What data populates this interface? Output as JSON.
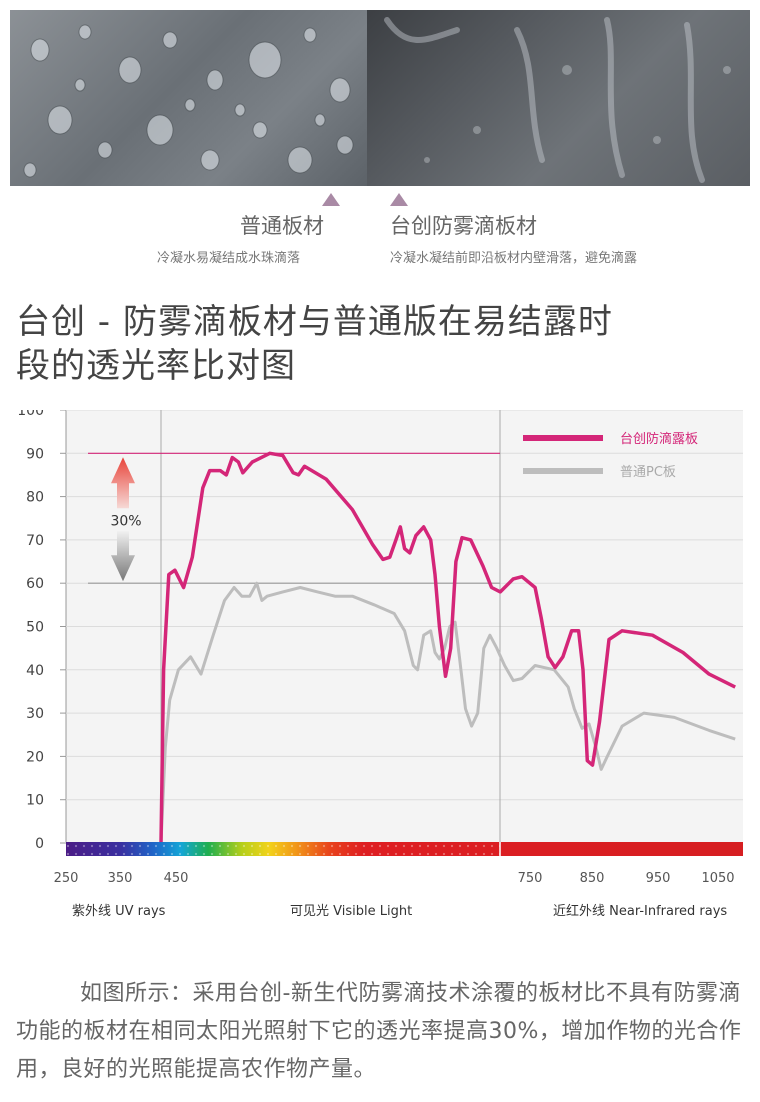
{
  "comparison": {
    "left": {
      "title": "普通板材",
      "subtitle": "冷凝水易凝结成水珠滴落"
    },
    "right": {
      "title": "台创防雾滴板材",
      "subtitle": "冷凝水凝结前即沿板材内壁滑落，避免滴露"
    }
  },
  "heading": {
    "line1": "台创 - 防雾滴板材与普通版在易结露时",
    "line2": "段的透光率比对图"
  },
  "chart_data": {
    "type": "line",
    "x_ticks": [
      {
        "label": "250",
        "x": 250
      },
      {
        "label": "350",
        "x": 350
      },
      {
        "label": "450",
        "x": 450
      },
      {
        "label": "750",
        "x": 750
      },
      {
        "label": "850",
        "x": 850
      },
      {
        "label": "950",
        "x": 950
      },
      {
        "label": "1050",
        "x": 1050
      }
    ],
    "y_ticks": [
      "0",
      "10",
      "20",
      "30",
      "40",
      "50",
      "60",
      "70",
      "80",
      "90",
      "100"
    ],
    "ylim": [
      0,
      100
    ],
    "regions": [
      {
        "label": "紫外线 UV rays",
        "pos": "left"
      },
      {
        "label": "可见光 Visible Light",
        "pos": "center"
      },
      {
        "label": "近红外线 Near-Infrared rays",
        "pos": "right"
      }
    ],
    "annotation": {
      "label": "30%",
      "from": 60,
      "to": 90
    },
    "series": [
      {
        "name": "台创防滴露板",
        "color": "#d42678",
        "points": [
          [
            0,
            0
          ],
          [
            0.3,
            40
          ],
          [
            0.9,
            62
          ],
          [
            1.6,
            63
          ],
          [
            2.6,
            59
          ],
          [
            3.6,
            66
          ],
          [
            4.8,
            82
          ],
          [
            5.6,
            86
          ],
          [
            6.8,
            86
          ],
          [
            7.5,
            85
          ],
          [
            8.2,
            89
          ],
          [
            8.9,
            88
          ],
          [
            9.4,
            85.5
          ],
          [
            10.5,
            88
          ],
          [
            12.5,
            90
          ],
          [
            14,
            89.5
          ],
          [
            15.2,
            85.5
          ],
          [
            15.8,
            85
          ],
          [
            16.5,
            87
          ],
          [
            19,
            84
          ],
          [
            22,
            77
          ],
          [
            24.3,
            69
          ],
          [
            25.5,
            65.5
          ],
          [
            26.3,
            66
          ],
          [
            27,
            70
          ],
          [
            27.5,
            73
          ],
          [
            28,
            68
          ],
          [
            28.6,
            67
          ],
          [
            29.3,
            71
          ],
          [
            30.2,
            73
          ],
          [
            31,
            70
          ],
          [
            31.5,
            62
          ],
          [
            32,
            50
          ],
          [
            32.7,
            38.5
          ],
          [
            33.3,
            45
          ],
          [
            33.9,
            65
          ],
          [
            34.6,
            70.5
          ],
          [
            35.6,
            70
          ],
          [
            37,
            64
          ],
          [
            38,
            59
          ],
          [
            39,
            58
          ],
          [
            40.5,
            61
          ],
          [
            41.5,
            61.5
          ],
          [
            43,
            59
          ],
          [
            43.7,
            52
          ],
          [
            44.5,
            43
          ],
          [
            45.3,
            40.5
          ],
          [
            46.2,
            43
          ],
          [
            47.2,
            49
          ],
          [
            48,
            49
          ],
          [
            48.5,
            40
          ],
          [
            49,
            19
          ],
          [
            49.6,
            18
          ],
          [
            50.4,
            28
          ],
          [
            51.5,
            47
          ],
          [
            53,
            49
          ],
          [
            56.5,
            48
          ],
          [
            60,
            44
          ],
          [
            63,
            39
          ],
          [
            66,
            36
          ]
        ]
      },
      {
        "name": "普通PC板",
        "color": "#bdbdbd",
        "points": [
          [
            0,
            0
          ],
          [
            0.5,
            22
          ],
          [
            1,
            33
          ],
          [
            2,
            40
          ],
          [
            3.4,
            43
          ],
          [
            4.6,
            39
          ],
          [
            6,
            48
          ],
          [
            7.3,
            56
          ],
          [
            8.4,
            59
          ],
          [
            9.3,
            57
          ],
          [
            10.2,
            57
          ],
          [
            11,
            60
          ],
          [
            11.6,
            56
          ],
          [
            12.2,
            57
          ],
          [
            14,
            58
          ],
          [
            16,
            59
          ],
          [
            18,
            58
          ],
          [
            20,
            57
          ],
          [
            22,
            57
          ],
          [
            24.5,
            55
          ],
          [
            26.8,
            53
          ],
          [
            28,
            49
          ],
          [
            29,
            41
          ],
          [
            29.5,
            40
          ],
          [
            30.2,
            48
          ],
          [
            31,
            49
          ],
          [
            31.5,
            44
          ],
          [
            32,
            42.5
          ],
          [
            32.6,
            45
          ],
          [
            33.2,
            50
          ],
          [
            33.8,
            51
          ],
          [
            34.3,
            43
          ],
          [
            35,
            31
          ],
          [
            35.7,
            27
          ],
          [
            36.4,
            30
          ],
          [
            37.1,
            45
          ],
          [
            37.8,
            48
          ],
          [
            38.6,
            45
          ],
          [
            39.5,
            41
          ],
          [
            40.5,
            37.5
          ],
          [
            41.5,
            38
          ],
          [
            43,
            41
          ],
          [
            45.2,
            40
          ],
          [
            46.8,
            36
          ],
          [
            47.5,
            31
          ],
          [
            48.4,
            26.5
          ],
          [
            49.2,
            27.5
          ],
          [
            50,
            22
          ],
          [
            50.6,
            17
          ],
          [
            51.3,
            20
          ],
          [
            53,
            27
          ],
          [
            55.5,
            30
          ],
          [
            59,
            29
          ],
          [
            63,
            26
          ],
          [
            66,
            24
          ]
        ]
      }
    ]
  },
  "paragraph": "如图所示：采用台创-新生代防雾滴技术涂覆的板材比不具有防雾滴功能的板材在相同太阳光照射下它的透光率提高30%，增加作物的光合作用，良好的光照能提高农作物产量。"
}
